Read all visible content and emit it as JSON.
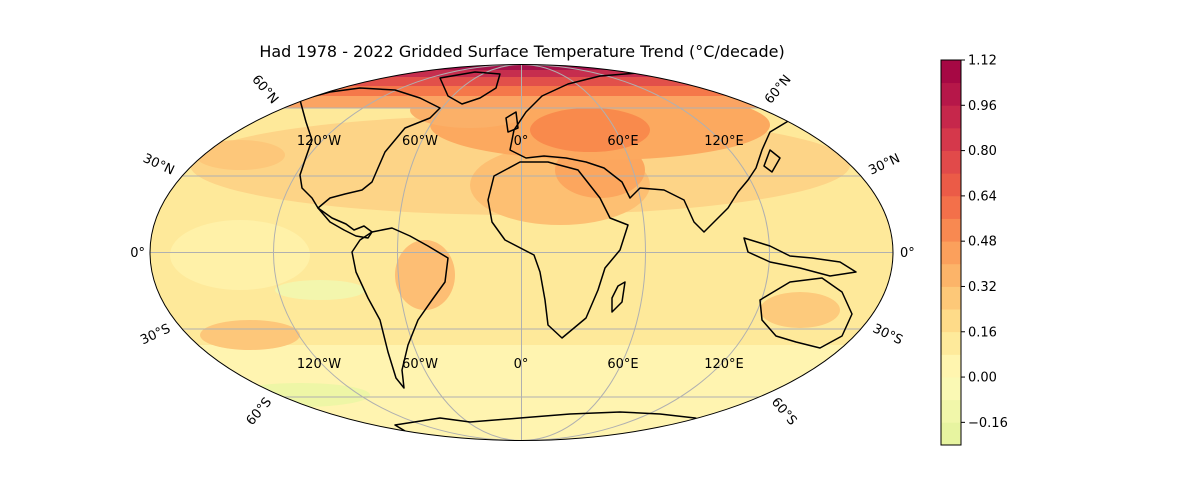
{
  "chart_data": {
    "type": "map",
    "projection": "Mollweide",
    "title": "Had 1978 - 2022 Gridded Surface Temperature Trend (°C/decade)",
    "grid": true,
    "meridian_labels": [
      "120°W",
      "60°W",
      "0°",
      "60°E",
      "120°E"
    ],
    "parallel_labels_left": [
      "60°N",
      "30°N",
      "0°",
      "30°S",
      "60°S"
    ],
    "parallel_labels_right": [
      "60°N",
      "30°N",
      "0°",
      "30°S",
      "60°S"
    ],
    "colorbar": {
      "position": "right",
      "colormap": "Spectral_r",
      "min": -0.24,
      "max": 1.12,
      "step": 0.08,
      "ticks": [
        -0.16,
        0.0,
        0.16,
        0.32,
        0.48,
        0.64,
        0.8,
        0.96,
        1.12
      ],
      "tick_labels": [
        "−0.16",
        "0.00",
        "0.16",
        "0.32",
        "0.48",
        "0.64",
        "0.80",
        "0.96",
        "1.12"
      ]
    },
    "trend_pattern": {
      "arctic": 1.0,
      "northern_high_latitudes": 0.6,
      "eurasia_north_africa": 0.55,
      "northern_mid_latitudes": 0.3,
      "tropics": 0.2,
      "southern_ocean": 0.05,
      "antarctica": 0.1
    }
  }
}
